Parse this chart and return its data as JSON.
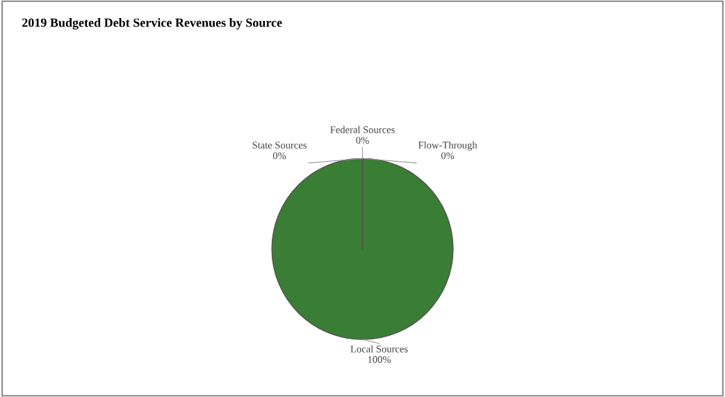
{
  "chart_data": {
    "type": "pie",
    "title": "2019 Budgeted Debt Service Revenues by Source",
    "categories": [
      "Local Sources",
      "State Sources",
      "Federal Sources",
      "Flow-Through"
    ],
    "values": [
      100,
      0,
      0,
      0
    ],
    "colors": [
      "#3a7d34",
      "#a0a0a0",
      "#a0a0a0",
      "#a0a0a0"
    ],
    "value_labels": [
      "100%",
      "0%",
      "0%",
      "0%"
    ]
  }
}
